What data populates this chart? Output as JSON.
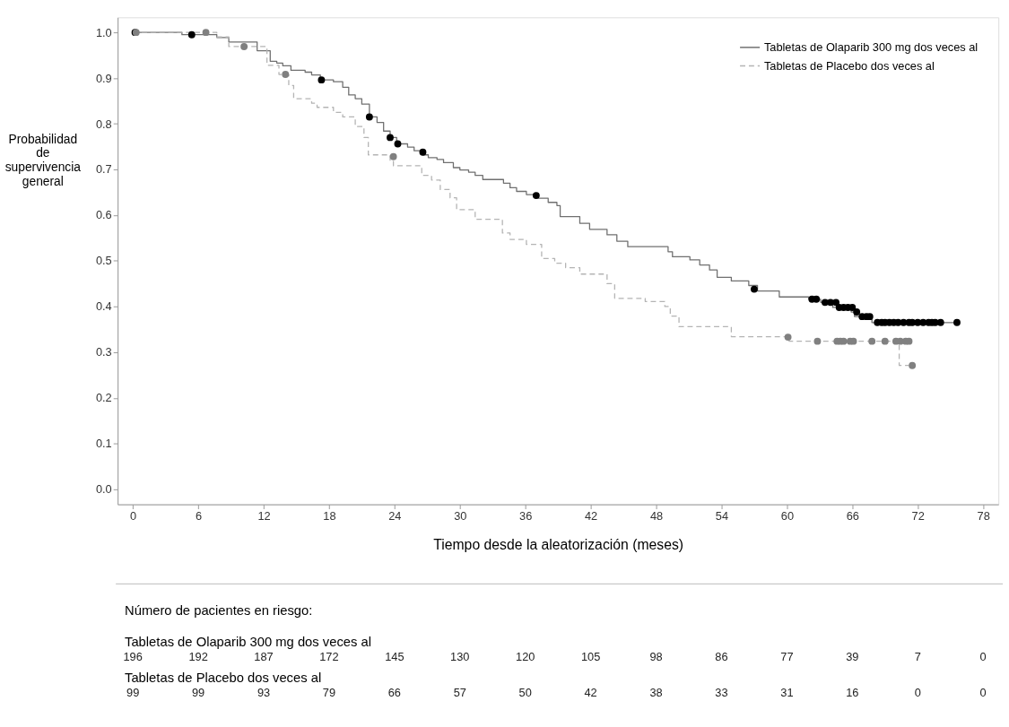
{
  "chart_data": {
    "type": "step",
    "xlabel": "Tiempo desde la aleatorización (meses)",
    "ylabel": "Probabilidad de supervivencia general",
    "xlim": [
      -1.4,
      79.4
    ],
    "ylim": [
      -0.033,
      1.033
    ],
    "xticks": [
      0,
      6,
      12,
      18,
      24,
      30,
      36,
      42,
      48,
      54,
      60,
      66,
      72,
      78
    ],
    "yticks": [
      {
        "value": 0,
        "label": "0.0"
      },
      {
        "value": 0.1,
        "label": "0.1"
      },
      {
        "value": 0.2,
        "label": "0.2"
      },
      {
        "value": 0.3,
        "label": "0.3"
      },
      {
        "value": 0.4,
        "label": "0.4"
      },
      {
        "value": 0.5,
        "label": "0.5"
      },
      {
        "value": 0.6,
        "label": "0.6"
      },
      {
        "value": 0.7,
        "label": "0.7"
      },
      {
        "value": 0.8,
        "label": "0.8"
      },
      {
        "value": 0.9,
        "label": "0.9"
      },
      {
        "value": 1,
        "label": "1.0"
      }
    ],
    "grid": false,
    "legend": "top right",
    "series": [
      {
        "name": "Tabletas de Olaparib 300 mg dos veces al",
        "type": "step",
        "color": "#707070",
        "line_style": "solid",
        "x": [
          0,
          4.5,
          7.7,
          8.8,
          11.4,
          12.6,
          13.2,
          13.75,
          14.5,
          15.8,
          16.4,
          17.2,
          18.4,
          19.25,
          19.8,
          20.4,
          21.0,
          21.7,
          22.4,
          23.0,
          23.6,
          24.2,
          25.2,
          25.8,
          26.6,
          27.1,
          27.9,
          28.5,
          29.4,
          30.0,
          30.8,
          31.4,
          32.1,
          34.0,
          34.6,
          35.2,
          36.1,
          37.2,
          38.1,
          38.9,
          39.2,
          41.0,
          41.9,
          43.5,
          44.4,
          45.4,
          49.1,
          49.5,
          51.1,
          52.0,
          52.9,
          53.6,
          54.9,
          56.5,
          57.3,
          59.3,
          62.0,
          63.1,
          64.2,
          65.9,
          66.2,
          67.8,
          75.6
        ],
        "values": [
          1.0,
          0.995,
          0.989,
          0.979,
          0.96,
          0.937,
          0.933,
          0.927,
          0.917,
          0.913,
          0.907,
          0.896,
          0.892,
          0.88,
          0.863,
          0.855,
          0.843,
          0.815,
          0.803,
          0.784,
          0.77,
          0.756,
          0.749,
          0.741,
          0.732,
          0.726,
          0.722,
          0.715,
          0.704,
          0.699,
          0.694,
          0.687,
          0.678,
          0.67,
          0.66,
          0.652,
          0.645,
          0.637,
          0.628,
          0.621,
          0.597,
          0.582,
          0.569,
          0.557,
          0.543,
          0.531,
          0.52,
          0.509,
          0.502,
          0.491,
          0.48,
          0.464,
          0.456,
          0.446,
          0.434,
          0.421,
          0.416,
          0.409,
          0.398,
          0.388,
          0.378,
          0.365,
          0.365
        ]
      },
      {
        "name": "Tabletas de Placebo dos veces al",
        "type": "step",
        "color": "#b4b4b4",
        "line_style": "dashed",
        "x": [
          0,
          7.7,
          8.8,
          12.3,
          13.4,
          14.3,
          14.75,
          16.4,
          16.9,
          18.4,
          19.25,
          20.4,
          21.2,
          21.6,
          23.6,
          23.9,
          26.5,
          27.4,
          28.2,
          29.1,
          29.7,
          31.4,
          33.9,
          34.6,
          36.1,
          37.5,
          38.7,
          39.7,
          41.0,
          43.5,
          44.2,
          47.0,
          48.8,
          49.3,
          50.1,
          54.9,
          60.2,
          70.3,
          71.2
        ],
        "values": [
          1.0,
          0.99,
          0.969,
          0.928,
          0.908,
          0.884,
          0.855,
          0.845,
          0.836,
          0.825,
          0.815,
          0.794,
          0.77,
          0.732,
          0.718,
          0.708,
          0.687,
          0.677,
          0.656,
          0.638,
          0.612,
          0.591,
          0.561,
          0.547,
          0.536,
          0.505,
          0.495,
          0.485,
          0.471,
          0.45,
          0.418,
          0.411,
          0.4,
          0.379,
          0.356,
          0.334,
          0.324,
          0.271,
          0.271
        ]
      },
      {
        "type": "scatter",
        "color": "#000000",
        "marker": "circle",
        "x": [
          0.2,
          5.4,
          17.3,
          21.7,
          23.6,
          24.3,
          26.6,
          37.0,
          57.0,
          62.3,
          62.7,
          63.5,
          64.0,
          64.5,
          64.8,
          65.2,
          65.6,
          66.0,
          66.4,
          66.9,
          67.3,
          67.6,
          68.3,
          68.7,
          69.0,
          69.4,
          69.8,
          70.2,
          70.7,
          71.2,
          71.5,
          72.0,
          72.5,
          73.0,
          73.3,
          73.6,
          74.1,
          75.6
        ],
        "values": [
          1.0,
          0.995,
          0.896,
          0.815,
          0.77,
          0.756,
          0.738,
          0.643,
          0.438,
          0.416,
          0.416,
          0.409,
          0.409,
          0.409,
          0.398,
          0.398,
          0.398,
          0.398,
          0.388,
          0.378,
          0.378,
          0.378,
          0.365,
          0.365,
          0.365,
          0.365,
          0.365,
          0.365,
          0.365,
          0.365,
          0.365,
          0.365,
          0.365,
          0.365,
          0.365,
          0.365,
          0.365,
          0.365
        ]
      },
      {
        "type": "scatter",
        "color": "#808080",
        "marker": "circle",
        "x": [
          0.3,
          6.7,
          10.2,
          14.0,
          23.9,
          60.1,
          62.8,
          64.6,
          64.9,
          65.2,
          65.8,
          66.1,
          67.8,
          69.0,
          70.0,
          70.4,
          70.9,
          71.2,
          71.5
        ],
        "values": [
          1.0,
          1.0,
          0.969,
          0.908,
          0.728,
          0.333,
          0.324,
          0.324,
          0.324,
          0.324,
          0.324,
          0.324,
          0.324,
          0.324,
          0.324,
          0.324,
          0.324,
          0.324,
          0.271
        ]
      }
    ],
    "annotations": [
      "Número de pacientes en riesgo:",
      "Tabletas de Olaparib 300 mg dos veces al",
      "196 192 187 172 145 130 120 105 98 86 77 39 7 0",
      "Tabletas de Placebo dos veces al",
      "99 99 93 79 66 57 50 42 38 33 31 16 0 0"
    ]
  }
}
